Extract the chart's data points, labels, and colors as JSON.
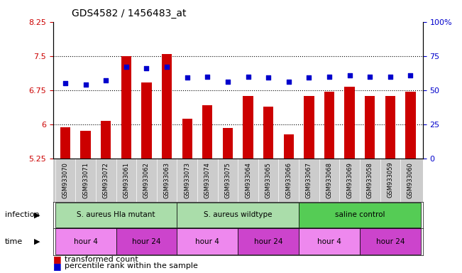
{
  "title": "GDS4582 / 1456483_at",
  "samples": [
    "GSM933070",
    "GSM933071",
    "GSM933072",
    "GSM933061",
    "GSM933062",
    "GSM933063",
    "GSM933073",
    "GSM933074",
    "GSM933075",
    "GSM933064",
    "GSM933065",
    "GSM933066",
    "GSM933067",
    "GSM933068",
    "GSM933069",
    "GSM933058",
    "GSM933059",
    "GSM933060"
  ],
  "bar_values": [
    5.93,
    5.85,
    6.08,
    7.5,
    6.92,
    7.55,
    6.12,
    6.42,
    5.92,
    6.62,
    6.38,
    5.78,
    6.62,
    6.72,
    6.82,
    6.62,
    6.62,
    6.72
  ],
  "dot_values": [
    55,
    54,
    57,
    67,
    66,
    67,
    59,
    60,
    56,
    60,
    59,
    56,
    59,
    60,
    61,
    60,
    60,
    61
  ],
  "ylim_left": [
    5.25,
    8.25
  ],
  "ylim_right": [
    0,
    100
  ],
  "yticks_left": [
    5.25,
    6.0,
    6.75,
    7.5,
    8.25
  ],
  "yticks_right": [
    0,
    25,
    50,
    75,
    100
  ],
  "ytick_labels_left": [
    "5.25",
    "6",
    "6.75",
    "7.5",
    "8.25"
  ],
  "ytick_labels_right": [
    "0",
    "25",
    "50",
    "75",
    "100%"
  ],
  "bar_color": "#cc0000",
  "dot_color": "#0000cc",
  "bar_bottom": 5.25,
  "groups": [
    {
      "label": "S. aureus Hla mutant",
      "start": 0,
      "end": 6
    },
    {
      "label": "S. aureus wildtype",
      "start": 6,
      "end": 12
    },
    {
      "label": "saline control",
      "start": 12,
      "end": 18
    }
  ],
  "group_colors": [
    "#aaddaa",
    "#aaddaa",
    "#55cc55"
  ],
  "time_groups": [
    {
      "label": "hour 4",
      "start": 0,
      "end": 3
    },
    {
      "label": "hour 24",
      "start": 3,
      "end": 6
    },
    {
      "label": "hour 4",
      "start": 6,
      "end": 9
    },
    {
      "label": "hour 24",
      "start": 9,
      "end": 12
    },
    {
      "label": "hour 4",
      "start": 12,
      "end": 15
    },
    {
      "label": "hour 24",
      "start": 15,
      "end": 18
    }
  ],
  "time_colors": [
    "#ee88ee",
    "#cc44cc",
    "#ee88ee",
    "#cc44cc",
    "#ee88ee",
    "#cc44cc"
  ],
  "legend_items": [
    {
      "label": "transformed count",
      "color": "#cc0000"
    },
    {
      "label": "percentile rank within the sample",
      "color": "#0000cc"
    }
  ],
  "xlabel_infection": "infection",
  "xlabel_time": "time",
  "tick_label_color_left": "#cc0000",
  "tick_label_color_right": "#0000cc",
  "xtick_bg_color": "#cccccc"
}
